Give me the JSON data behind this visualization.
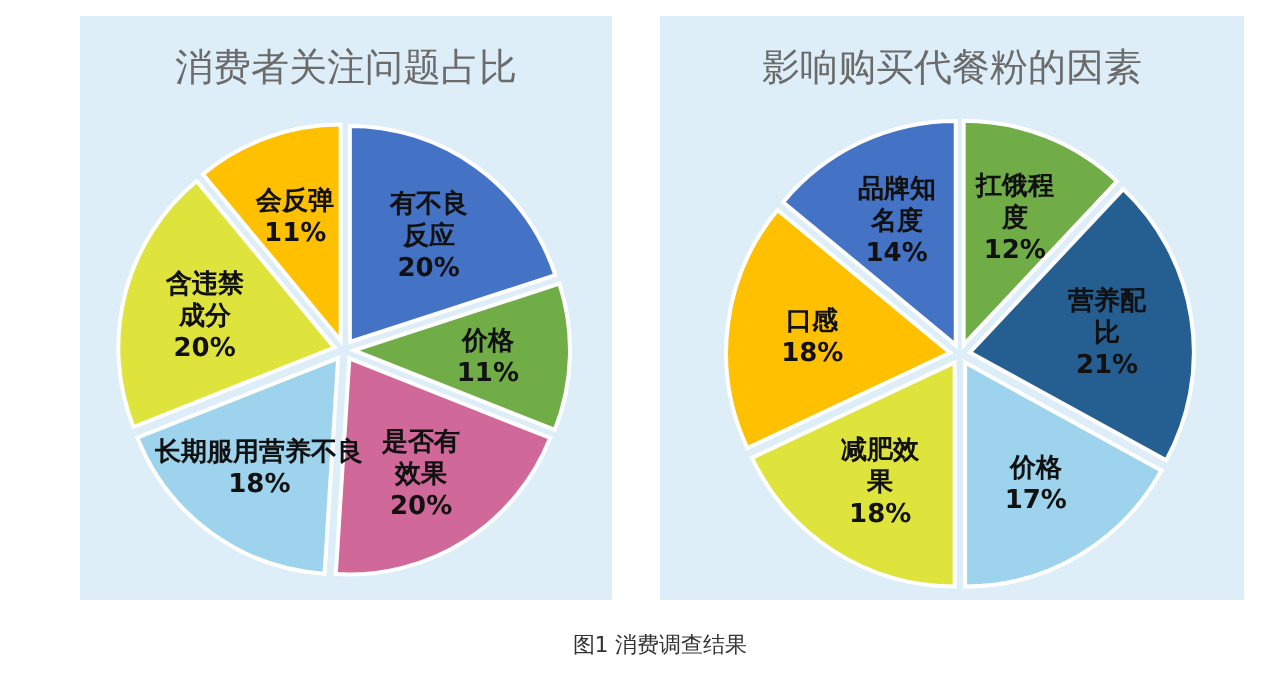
{
  "chart_data": [
    {
      "type": "pie",
      "title": "消费者关注问题占比",
      "categories": [
        "有不良反应",
        "价格",
        "是否有效果",
        "长期服用营养不良",
        "含违禁成分",
        "会反弹"
      ],
      "values": [
        20,
        11,
        20,
        18,
        20,
        11
      ],
      "value_labels": [
        "20%",
        "11%",
        "20%",
        "18%",
        "20%",
        "11%"
      ],
      "colors": [
        "#4472c4",
        "#70ad47",
        "#d0689a",
        "#9dd3ec",
        "#dfe43c",
        "#ffc000"
      ],
      "annotations": [
        "图1  消费调查结果"
      ]
    },
    {
      "type": "pie",
      "title": "影响购买代餐粉的因素",
      "categories": [
        "扛饿程度",
        "营养配比",
        "价格",
        "减肥效果",
        "口感",
        "品牌知名度"
      ],
      "values": [
        12,
        21,
        17,
        18,
        18,
        14
      ],
      "value_labels": [
        "12%",
        "21%",
        "17%",
        "18%",
        "18%",
        "14%"
      ],
      "colors": [
        "#70ad47",
        "#255e91",
        "#9dd3ec",
        "#dfe43c",
        "#ffc000",
        "#4472c4"
      ]
    }
  ]
}
